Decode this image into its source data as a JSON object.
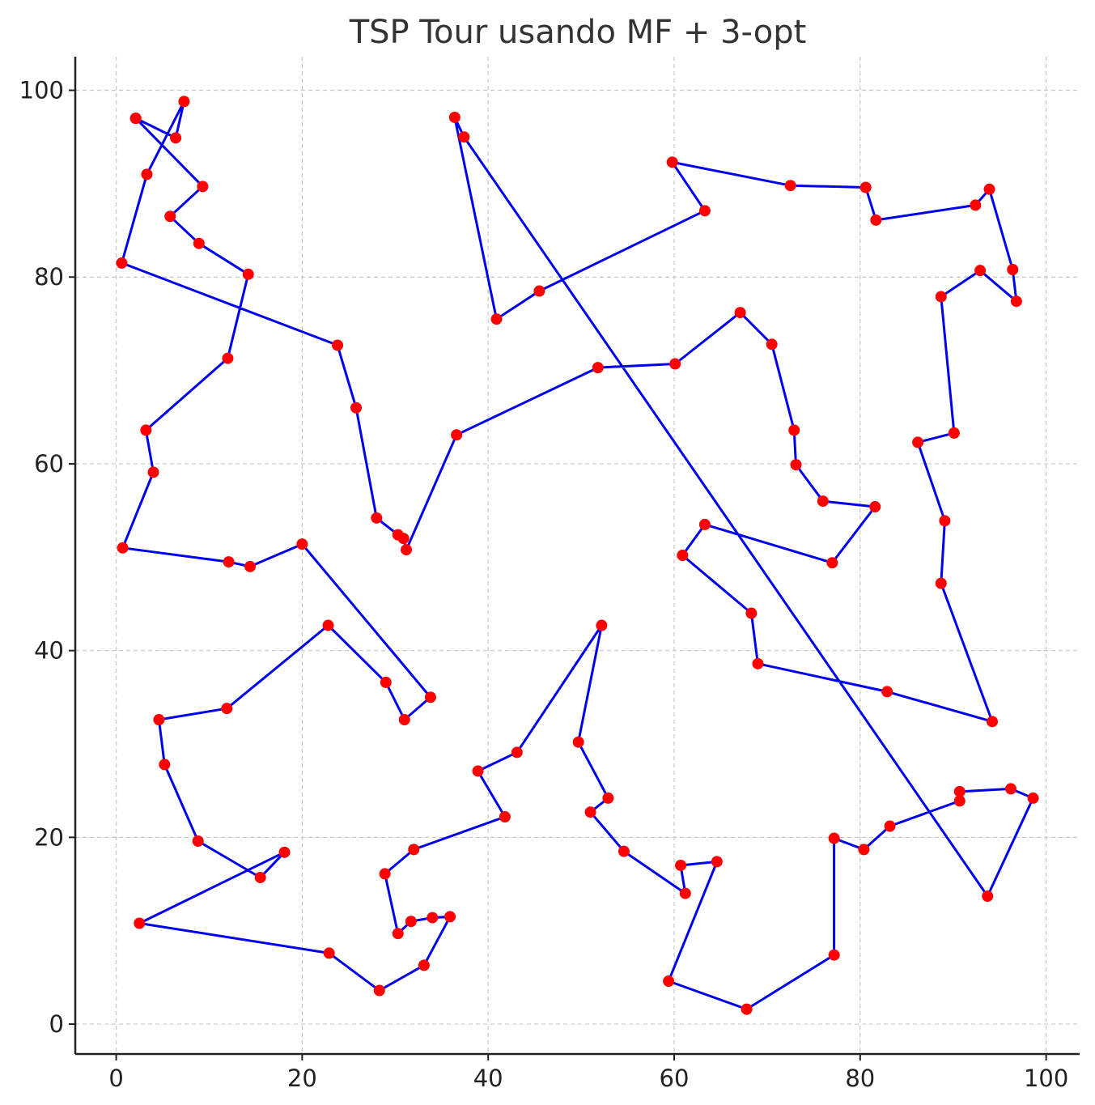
{
  "chart_data": {
    "type": "line",
    "title": "TSP Tour usando MF + 3-opt",
    "xlabel": "",
    "ylabel": "",
    "xlim": [
      -4.4,
      103.6
    ],
    "ylim": [
      -3.2,
      103.6
    ],
    "xticks": [
      0,
      20,
      40,
      60,
      80,
      100
    ],
    "yticks": [
      0,
      20,
      40,
      60,
      80,
      100
    ],
    "grid": true,
    "legend": "none",
    "colors": {
      "line": "#0000ee",
      "marker": "#ff0000"
    },
    "tour": [
      [
        2.1,
        97.0
      ],
      [
        9.3,
        89.7
      ],
      [
        5.8,
        86.5
      ],
      [
        8.9,
        83.6
      ],
      [
        14.2,
        80.3
      ],
      [
        12.0,
        71.3
      ],
      [
        3.2,
        63.6
      ],
      [
        4.0,
        59.1
      ],
      [
        0.7,
        51.0
      ],
      [
        12.1,
        49.5
      ],
      [
        14.4,
        49.0
      ],
      [
        20.0,
        51.4
      ],
      [
        33.8,
        35.0
      ],
      [
        31.0,
        32.6
      ],
      [
        29.0,
        36.6
      ],
      [
        22.8,
        42.7
      ],
      [
        11.9,
        33.8
      ],
      [
        4.6,
        32.6
      ],
      [
        5.2,
        27.8
      ],
      [
        8.8,
        19.6
      ],
      [
        15.5,
        15.7
      ],
      [
        18.1,
        18.4
      ],
      [
        2.5,
        10.8
      ],
      [
        22.9,
        7.6
      ],
      [
        28.3,
        3.6
      ],
      [
        33.1,
        6.3
      ],
      [
        35.9,
        11.5
      ],
      [
        34.0,
        11.4
      ],
      [
        31.7,
        11.0
      ],
      [
        30.3,
        9.7
      ],
      [
        28.9,
        16.1
      ],
      [
        32.0,
        18.7
      ],
      [
        41.8,
        22.2
      ],
      [
        38.9,
        27.1
      ],
      [
        43.1,
        29.1
      ],
      [
        52.2,
        42.7
      ],
      [
        49.7,
        30.2
      ],
      [
        52.9,
        24.2
      ],
      [
        51.0,
        22.7
      ],
      [
        54.6,
        18.5
      ],
      [
        61.2,
        14.0
      ],
      [
        60.7,
        17.0
      ],
      [
        64.6,
        17.4
      ],
      [
        59.4,
        4.6
      ],
      [
        67.8,
        1.6
      ],
      [
        77.2,
        7.4
      ],
      [
        77.2,
        19.9
      ],
      [
        80.4,
        18.7
      ],
      [
        83.2,
        21.2
      ],
      [
        90.7,
        23.9
      ],
      [
        90.7,
        24.9
      ],
      [
        96.2,
        25.2
      ],
      [
        98.6,
        24.2
      ],
      [
        93.7,
        13.7
      ],
      [
        37.4,
        95.0
      ],
      [
        36.4,
        97.1
      ],
      [
        40.9,
        75.5
      ],
      [
        45.5,
        78.5
      ],
      [
        63.3,
        87.1
      ],
      [
        59.8,
        92.3
      ],
      [
        72.5,
        89.8
      ],
      [
        80.6,
        89.6
      ],
      [
        81.7,
        86.1
      ],
      [
        92.4,
        87.7
      ],
      [
        93.9,
        89.4
      ],
      [
        96.4,
        80.8
      ],
      [
        96.8,
        77.4
      ],
      [
        92.9,
        80.7
      ],
      [
        88.7,
        77.9
      ],
      [
        90.1,
        63.3
      ],
      [
        86.2,
        62.3
      ],
      [
        89.1,
        53.9
      ],
      [
        88.7,
        47.2
      ],
      [
        94.2,
        32.4
      ],
      [
        82.9,
        35.6
      ],
      [
        69.0,
        38.6
      ],
      [
        68.3,
        44.0
      ],
      [
        60.9,
        50.2
      ],
      [
        63.3,
        53.5
      ],
      [
        77.0,
        49.4
      ],
      [
        81.6,
        55.4
      ],
      [
        76.0,
        56.0
      ],
      [
        73.1,
        59.9
      ],
      [
        72.9,
        63.6
      ],
      [
        70.5,
        72.8
      ],
      [
        67.1,
        76.2
      ],
      [
        60.1,
        70.7
      ],
      [
        51.8,
        70.3
      ],
      [
        36.6,
        63.1
      ],
      [
        31.2,
        50.8
      ],
      [
        30.9,
        52.0
      ],
      [
        30.3,
        52.4
      ],
      [
        28.0,
        54.2
      ],
      [
        25.8,
        66.0
      ],
      [
        23.8,
        72.7
      ],
      [
        0.6,
        81.5
      ],
      [
        3.3,
        91.0
      ],
      [
        7.3,
        98.8
      ],
      [
        6.4,
        94.9
      ],
      [
        2.1,
        97.0
      ]
    ]
  }
}
